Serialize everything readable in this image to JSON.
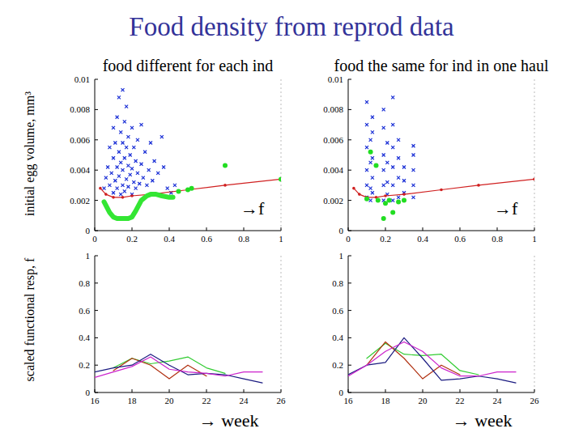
{
  "slide": {
    "title": "Food density from reprod data",
    "ylabels": [
      "initial egg volume, mm³",
      "scaled functional resp, f"
    ]
  },
  "chart_data": [
    {
      "type": "scatter",
      "title": "food different for each ind",
      "annotation": "→f",
      "xlim": [
        0,
        1
      ],
      "ylim": [
        0,
        0.01
      ],
      "xticks": [
        0,
        0.2,
        0.4,
        0.6,
        0.8,
        1
      ],
      "yticks": [
        0,
        0.002,
        0.004,
        0.006,
        0.008,
        0.01
      ],
      "grid": false,
      "series": [
        {
          "type": "scatter",
          "marker": "x",
          "color": "#1a2fd6",
          "x": [
            0.05,
            0.06,
            0.07,
            0.08,
            0.08,
            0.09,
            0.1,
            0.1,
            0.1,
            0.11,
            0.11,
            0.12,
            0.12,
            0.12,
            0.13,
            0.13,
            0.13,
            0.14,
            0.14,
            0.14,
            0.15,
            0.15,
            0.15,
            0.15,
            0.16,
            0.16,
            0.16,
            0.17,
            0.17,
            0.17,
            0.18,
            0.18,
            0.18,
            0.19,
            0.19,
            0.2,
            0.2,
            0.2,
            0.21,
            0.21,
            0.22,
            0.22,
            0.23,
            0.23,
            0.24,
            0.25,
            0.25,
            0.26,
            0.27,
            0.28,
            0.29,
            0.3,
            0.31,
            0.32,
            0.34,
            0.36,
            0.37,
            0.39,
            0.41,
            0.43
          ],
          "values": [
            0.0028,
            0.0035,
            0.0042,
            0.003,
            0.0055,
            0.0038,
            0.0025,
            0.0048,
            0.0068,
            0.0033,
            0.0058,
            0.0028,
            0.0042,
            0.0075,
            0.0036,
            0.0052,
            0.0088,
            0.0024,
            0.0045,
            0.0065,
            0.003,
            0.004,
            0.0058,
            0.0093,
            0.0026,
            0.0048,
            0.0072,
            0.0034,
            0.0055,
            0.0082,
            0.0029,
            0.0043,
            0.0062,
            0.0037,
            0.005,
            0.0024,
            0.0041,
            0.0068,
            0.0032,
            0.0055,
            0.0028,
            0.0046,
            0.0038,
            0.006,
            0.0031,
            0.0044,
            0.007,
            0.0035,
            0.0052,
            0.003,
            0.004,
            0.0058,
            0.0033,
            0.0046,
            0.0038,
            0.0062,
            0.0042,
            0.0028,
            0.0025,
            0.003
          ]
        },
        {
          "type": "line",
          "marker": "dot",
          "line_style": "solid",
          "color": "#d02020",
          "x": [
            0.03,
            0.06,
            0.1,
            0.15,
            0.2,
            0.3,
            0.5,
            0.7,
            1.0
          ],
          "values": [
            0.0028,
            0.0024,
            0.0022,
            0.0022,
            0.0023,
            0.0024,
            0.0027,
            0.003,
            0.0034
          ]
        },
        {
          "type": "line",
          "marker": "none",
          "line_style": "thick",
          "color": "#33e633",
          "x": [
            0.05,
            0.08,
            0.1,
            0.12,
            0.15,
            0.18,
            0.2,
            0.22,
            0.25,
            0.28,
            0.3,
            0.33,
            0.36,
            0.4,
            0.42
          ],
          "values": [
            0.0019,
            0.0012,
            0.0009,
            0.0008,
            0.0008,
            0.0008,
            0.0009,
            0.0013,
            0.002,
            0.0023,
            0.0024,
            0.0024,
            0.0023,
            0.0022,
            0.0022
          ]
        },
        {
          "type": "scatter",
          "marker": "circle",
          "color": "#22dd22",
          "x": [
            0.45,
            0.5,
            0.52,
            0.7,
            1.0
          ],
          "values": [
            0.0026,
            0.0027,
            0.0028,
            0.0043,
            0.0034
          ]
        }
      ]
    },
    {
      "type": "scatter",
      "title": "food the same for ind in one haul",
      "annotation": "→f",
      "xlim": [
        0,
        1
      ],
      "ylim": [
        0,
        0.01
      ],
      "xticks": [
        0,
        0.2,
        0.4,
        0.6,
        0.8,
        1
      ],
      "yticks": [
        0,
        0.002,
        0.004,
        0.006,
        0.008,
        0.01
      ],
      "grid": false,
      "series": [
        {
          "type": "scatter",
          "marker": "x",
          "color": "#1a2fd6",
          "x": [
            0.1,
            0.1,
            0.1,
            0.1,
            0.1,
            0.1,
            0.12,
            0.12,
            0.12,
            0.12,
            0.13,
            0.13,
            0.13,
            0.13,
            0.13,
            0.19,
            0.19,
            0.19,
            0.19,
            0.19,
            0.19,
            0.21,
            0.21,
            0.21,
            0.21,
            0.24,
            0.24,
            0.24,
            0.24,
            0.24,
            0.24,
            0.27,
            0.27,
            0.27,
            0.27,
            0.3,
            0.3,
            0.3,
            0.35,
            0.35,
            0.35,
            0.35,
            0.35
          ],
          "values": [
            0.0022,
            0.003,
            0.004,
            0.0055,
            0.007,
            0.0085,
            0.002,
            0.0028,
            0.0045,
            0.006,
            0.0025,
            0.0035,
            0.0048,
            0.0065,
            0.0075,
            0.002,
            0.003,
            0.004,
            0.005,
            0.0068,
            0.008,
            0.0024,
            0.0032,
            0.0045,
            0.0058,
            0.002,
            0.003,
            0.0042,
            0.0055,
            0.007,
            0.0088,
            0.0022,
            0.0035,
            0.0048,
            0.006,
            0.0025,
            0.0033,
            0.0042,
            0.0022,
            0.003,
            0.004,
            0.005,
            0.0056
          ]
        },
        {
          "type": "line",
          "marker": "dot",
          "line_style": "solid",
          "color": "#d02020",
          "x": [
            0.03,
            0.06,
            0.1,
            0.15,
            0.2,
            0.3,
            0.5,
            0.7,
            1.0
          ],
          "values": [
            0.0028,
            0.0024,
            0.0022,
            0.0022,
            0.0023,
            0.0024,
            0.0027,
            0.003,
            0.0034
          ]
        },
        {
          "type": "scatter",
          "marker": "circle",
          "color": "#22dd22",
          "x": [
            0.1,
            0.12,
            0.15,
            0.16,
            0.19,
            0.2,
            0.22,
            0.24,
            0.27,
            0.3
          ],
          "values": [
            0.0021,
            0.0052,
            0.0043,
            0.002,
            0.0008,
            0.0018,
            0.002,
            0.0012,
            0.0019,
            0.002
          ]
        }
      ]
    },
    {
      "type": "line",
      "xlabel": "→ week",
      "xlim": [
        16,
        26
      ],
      "ylim": [
        0,
        1
      ],
      "xticks": [
        16,
        18,
        20,
        22,
        24,
        26
      ],
      "yticks": [
        0,
        0.2,
        0.4,
        0.6,
        0.8,
        1
      ],
      "grid": false,
      "series": [
        {
          "type": "line",
          "marker": "none",
          "line_style": "solid",
          "color": "#33cc33",
          "x": [
            17,
            18,
            19,
            20,
            21,
            22,
            23
          ],
          "values": [
            0.18,
            0.25,
            0.21,
            0.23,
            0.26,
            0.18,
            0.14
          ]
        },
        {
          "type": "line",
          "marker": "none",
          "line_style": "solid",
          "color": "#b03010",
          "x": [
            17,
            18,
            19,
            20,
            21,
            22
          ],
          "values": [
            0.16,
            0.25,
            0.2,
            0.1,
            0.2,
            0.12
          ]
        },
        {
          "type": "line",
          "marker": "none",
          "line_style": "solid",
          "color": "#1a1a80",
          "x": [
            16,
            17,
            18,
            19,
            20,
            21,
            22,
            23,
            24,
            25
          ],
          "values": [
            0.15,
            0.18,
            0.2,
            0.28,
            0.2,
            0.13,
            0.14,
            0.13,
            0.1,
            0.07
          ]
        },
        {
          "type": "line",
          "marker": "none",
          "line_style": "solid",
          "color": "#cc22cc",
          "x": [
            16,
            17,
            18,
            19,
            20,
            21,
            22,
            23,
            24,
            25
          ],
          "values": [
            0.11,
            0.15,
            0.19,
            0.26,
            0.17,
            0.15,
            0.14,
            0.12,
            0.15,
            0.15
          ]
        }
      ]
    },
    {
      "type": "line",
      "xlabel": "→ week",
      "xlim": [
        16,
        26
      ],
      "ylim": [
        0,
        1
      ],
      "xticks": [
        16,
        18,
        20,
        22,
        24,
        26
      ],
      "yticks": [
        0,
        0.2,
        0.4,
        0.6,
        0.8,
        1
      ],
      "grid": false,
      "series": [
        {
          "type": "line",
          "marker": "none",
          "line_style": "solid",
          "color": "#33cc33",
          "x": [
            17,
            18,
            19,
            20,
            21,
            22,
            23
          ],
          "values": [
            0.25,
            0.36,
            0.28,
            0.27,
            0.28,
            0.16,
            0.13
          ]
        },
        {
          "type": "line",
          "marker": "none",
          "line_style": "solid",
          "color": "#b03010",
          "x": [
            17,
            18,
            19,
            20,
            21,
            22
          ],
          "values": [
            0.2,
            0.37,
            0.25,
            0.1,
            0.2,
            0.13
          ]
        },
        {
          "type": "line",
          "marker": "none",
          "line_style": "solid",
          "color": "#1a1a80",
          "x": [
            16,
            17,
            18,
            19,
            20,
            21,
            22,
            23,
            24,
            25
          ],
          "values": [
            0.13,
            0.2,
            0.22,
            0.4,
            0.25,
            0.09,
            0.1,
            0.12,
            0.1,
            0.07
          ]
        },
        {
          "type": "line",
          "marker": "none",
          "line_style": "solid",
          "color": "#cc22cc",
          "x": [
            16,
            17,
            18,
            19,
            20,
            21,
            22,
            23,
            24,
            25
          ],
          "values": [
            0.12,
            0.2,
            0.3,
            0.37,
            0.3,
            0.18,
            0.12,
            0.12,
            0.15,
            0.15
          ]
        }
      ]
    }
  ]
}
